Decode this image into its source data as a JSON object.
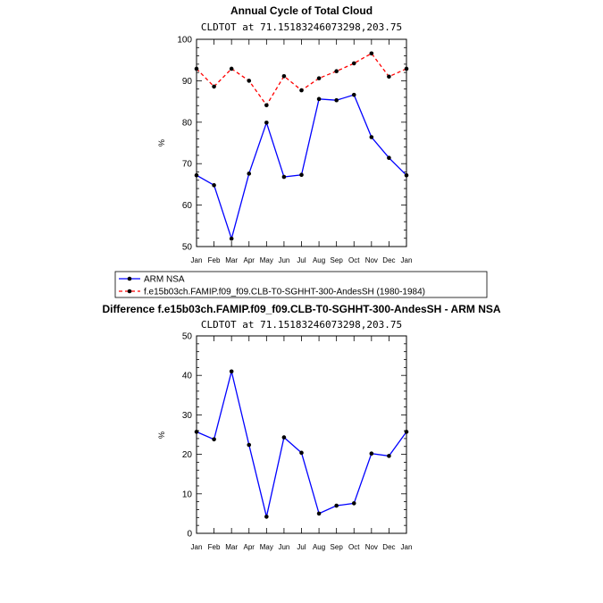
{
  "chart_data": [
    {
      "type": "line",
      "title": "Annual Cycle of Total Cloud",
      "subtitle": "CLDTOT at 71.15183246073298,203.75",
      "ylabel": "%",
      "xlabel": "",
      "ylim": [
        50,
        100
      ],
      "yticks": [
        "50",
        "60",
        "70",
        "80",
        "90",
        "100"
      ],
      "categories": [
        "Jan",
        "Feb",
        "Mar",
        "Apr",
        "May",
        "Jun",
        "Jul",
        "Aug",
        "Sep",
        "Oct",
        "Nov",
        "Dec",
        "Jan"
      ],
      "series": [
        {
          "name": "ARM NSA",
          "color": "#0000ff",
          "dash": "solid",
          "values": [
            67.2,
            64.8,
            51.9,
            67.6,
            79.9,
            66.8,
            67.3,
            85.6,
            85.3,
            86.6,
            76.4,
            71.4,
            67.2
          ]
        },
        {
          "name": "f.e15b03ch.FAMIP.f09_f09.CLB-T0-SGHHT-300-AndesSH (1980-1984)",
          "color": "#ff0000",
          "dash": "dashed",
          "values": [
            92.9,
            88.6,
            92.9,
            90.0,
            84.1,
            91.1,
            87.7,
            90.6,
            92.3,
            94.2,
            96.6,
            91.0,
            92.9
          ]
        }
      ],
      "legend_position": "bottom"
    },
    {
      "type": "line",
      "title": "Difference f.e15b03ch.FAMIP.f09_f09.CLB-T0-SGHHT-300-AndesSH - ARM NSA",
      "subtitle": "CLDTOT at 71.15183246073298,203.75",
      "ylabel": "%",
      "xlabel": "",
      "ylim": [
        0,
        50
      ],
      "yticks": [
        "0",
        "10",
        "20",
        "30",
        "40",
        "50"
      ],
      "categories": [
        "Jan",
        "Feb",
        "Mar",
        "Apr",
        "May",
        "Jun",
        "Jul",
        "Aug",
        "Sep",
        "Oct",
        "Nov",
        "Dec",
        "Jan"
      ],
      "series": [
        {
          "name": "Difference",
          "color": "#0000ff",
          "dash": "solid",
          "values": [
            25.7,
            23.8,
            41.0,
            22.4,
            4.2,
            24.3,
            20.4,
            5.0,
            7.0,
            7.6,
            20.2,
            19.6,
            25.7
          ]
        }
      ]
    }
  ]
}
